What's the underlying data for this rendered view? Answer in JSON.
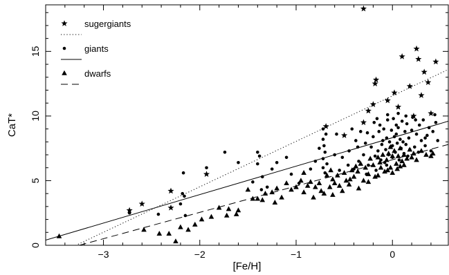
{
  "chart_data": {
    "type": "scatter",
    "xlabel": "[Fe/H]",
    "ylabel": "CaT*",
    "xlim": [
      -3.6,
      0.58
    ],
    "ylim": [
      0,
      18.6
    ],
    "x_ticks": [
      -3,
      -2,
      -1,
      0
    ],
    "y_ticks": [
      0,
      5,
      10,
      15
    ],
    "grid": false,
    "legend_position": "top-left",
    "legend": [
      {
        "label": "sugergiants",
        "marker": "star",
        "line": "dotted"
      },
      {
        "label": "giants",
        "marker": "circle",
        "line": "solid"
      },
      {
        "label": "dwarfs",
        "marker": "triangle",
        "line": "dashed"
      }
    ],
    "fit_lines": [
      {
        "series": "sugergiants",
        "style": "dotted",
        "x": [
          -3.4,
          0.58
        ],
        "y": [
          -0.4,
          13.6
        ]
      },
      {
        "series": "giants",
        "style": "solid",
        "x": [
          -3.6,
          0.58
        ],
        "y": [
          0.4,
          9.6
        ]
      },
      {
        "series": "dwarfs",
        "style": "dashed",
        "x": [
          -3.25,
          0.58
        ],
        "y": [
          0.0,
          7.8
        ]
      }
    ],
    "series": [
      {
        "name": "sugergiants",
        "marker": "star",
        "points": [
          [
            -2.73,
            2.7
          ],
          [
            -2.6,
            3.2
          ],
          [
            -2.3,
            4.2
          ],
          [
            -2.3,
            2.9
          ],
          [
            -1.93,
            5.5
          ],
          [
            -0.69,
            9.2
          ],
          [
            -0.3,
            18.3
          ],
          [
            -0.25,
            10.4
          ],
          [
            -0.18,
            12.5
          ],
          [
            -0.17,
            12.8
          ],
          [
            -0.05,
            11.2
          ],
          [
            0.02,
            11.8
          ],
          [
            0.1,
            14.6
          ],
          [
            0.18,
            12.3
          ],
          [
            0.25,
            15.2
          ],
          [
            0.27,
            14.4
          ],
          [
            0.33,
            13.4
          ],
          [
            0.37,
            12.6
          ],
          [
            0.45,
            14.2
          ],
          [
            0.4,
            10.2
          ],
          [
            -0.5,
            8.5
          ],
          [
            -0.3,
            9.5
          ],
          [
            0.06,
            10.7
          ],
          [
            0.22,
            10.0
          ],
          [
            -0.2,
            10.9
          ],
          [
            0.3,
            11.6
          ]
        ]
      },
      {
        "name": "giants",
        "marker": "circle",
        "points": [
          [
            -2.73,
            2.5
          ],
          [
            -2.43,
            2.4
          ],
          [
            -2.18,
            4.0
          ],
          [
            -2.16,
            3.8
          ],
          [
            -2.17,
            5.6
          ],
          [
            -2.2,
            3.2
          ],
          [
            -2.15,
            2.3
          ],
          [
            -1.93,
            6.0
          ],
          [
            -1.74,
            7.2
          ],
          [
            -1.6,
            6.4
          ],
          [
            -1.45,
            4.9
          ],
          [
            -1.4,
            6.3
          ],
          [
            -1.4,
            7.2
          ],
          [
            -1.38,
            6.9
          ],
          [
            -1.35,
            5.3
          ],
          [
            -1.36,
            4.3
          ],
          [
            -1.3,
            4.5
          ],
          [
            -1.25,
            5.9
          ],
          [
            -1.2,
            6.4
          ],
          [
            -1.1,
            6.8
          ],
          [
            -1.05,
            5.5
          ],
          [
            -0.97,
            4.8
          ],
          [
            -0.85,
            5.9
          ],
          [
            -0.8,
            6.5
          ],
          [
            -0.76,
            7.5
          ],
          [
            -0.72,
            6.7
          ],
          [
            -0.72,
            8.2
          ],
          [
            -0.72,
            9.0
          ],
          [
            -0.72,
            6.0
          ],
          [
            -0.71,
            7.7
          ],
          [
            -0.7,
            5.6
          ],
          [
            -0.69,
            8.6
          ],
          [
            -0.68,
            6.3
          ],
          [
            -0.7,
            7.2
          ],
          [
            -0.6,
            7.0
          ],
          [
            -0.55,
            5.8
          ],
          [
            -0.52,
            6.8
          ],
          [
            -0.45,
            7.3
          ],
          [
            -0.4,
            5.9
          ],
          [
            -0.38,
            8.1
          ],
          [
            -0.35,
            6.5
          ],
          [
            -0.3,
            7.0
          ],
          [
            -0.28,
            7.9
          ],
          [
            -0.27,
            5.5
          ],
          [
            -0.25,
            6.2
          ],
          [
            -0.22,
            7.6
          ],
          [
            -0.2,
            8.4
          ],
          [
            -0.18,
            6.9
          ],
          [
            -0.17,
            5.8
          ],
          [
            -0.15,
            7.3
          ],
          [
            -0.14,
            8.8
          ],
          [
            -0.13,
            9.3
          ],
          [
            -0.12,
            6.6
          ],
          [
            -0.11,
            7.8
          ],
          [
            -0.1,
            8.1
          ],
          [
            -0.09,
            9.0
          ],
          [
            -0.08,
            6.4
          ],
          [
            -0.07,
            7.4
          ],
          [
            -0.06,
            8.3
          ],
          [
            -0.05,
            9.7
          ],
          [
            -0.04,
            7.0
          ],
          [
            -0.03,
            8.0
          ],
          [
            -0.02,
            7.6
          ],
          [
            -0.01,
            8.9
          ],
          [
            0.0,
            6.8
          ],
          [
            0.0,
            7.7
          ],
          [
            0.01,
            9.8
          ],
          [
            0.02,
            8.4
          ],
          [
            0.03,
            7.2
          ],
          [
            0.04,
            8.6
          ],
          [
            0.05,
            7.9
          ],
          [
            0.06,
            9.1
          ],
          [
            0.07,
            6.6
          ],
          [
            0.08,
            8.2
          ],
          [
            0.09,
            7.5
          ],
          [
            0.1,
            9.6
          ],
          [
            0.11,
            8.0
          ],
          [
            0.12,
            7.1
          ],
          [
            0.13,
            8.8
          ],
          [
            0.14,
            7.8
          ],
          [
            0.15,
            9.4
          ],
          [
            0.16,
            6.9
          ],
          [
            0.17,
            8.3
          ],
          [
            0.18,
            7.4
          ],
          [
            0.2,
            8.9
          ],
          [
            0.21,
            9.9
          ],
          [
            0.23,
            7.6
          ],
          [
            0.25,
            8.6
          ],
          [
            0.27,
            7.2
          ],
          [
            0.28,
            9.3
          ],
          [
            0.3,
            8.1
          ],
          [
            0.32,
            9.7
          ],
          [
            0.34,
            7.7
          ],
          [
            0.36,
            8.5
          ],
          [
            0.38,
            9.1
          ],
          [
            0.4,
            7.3
          ],
          [
            0.42,
            8.8
          ],
          [
            0.45,
            9.5
          ],
          [
            0.47,
            8.1
          ],
          [
            -0.19,
            9.5
          ],
          [
            -0.05,
            10.1
          ],
          [
            0.06,
            10.2
          ],
          [
            -0.33,
            8.8
          ],
          [
            -0.42,
            9.0
          ],
          [
            -0.58,
            8.6
          ],
          [
            -0.46,
            6.2
          ],
          [
            -0.36,
            7.6
          ],
          [
            -0.26,
            8.7
          ],
          [
            -0.16,
            9.8
          ],
          [
            -0.06,
            6.2
          ],
          [
            0.04,
            9.3
          ],
          [
            0.14,
            10.0
          ],
          [
            0.24,
            9.7
          ],
          [
            0.34,
            8.3
          ],
          [
            0.44,
            10.1
          ]
        ]
      },
      {
        "name": "dwarfs",
        "marker": "triangle",
        "points": [
          [
            -3.46,
            0.7
          ],
          [
            -2.58,
            1.2
          ],
          [
            -2.32,
            0.9
          ],
          [
            -2.25,
            0.3
          ],
          [
            -2.2,
            1.4
          ],
          [
            -2.05,
            1.6
          ],
          [
            -1.98,
            2.0
          ],
          [
            -1.88,
            2.2
          ],
          [
            -1.8,
            2.9
          ],
          [
            -1.7,
            2.8
          ],
          [
            -1.6,
            2.7
          ],
          [
            -1.5,
            4.3
          ],
          [
            -1.45,
            3.6
          ],
          [
            -1.4,
            3.6
          ],
          [
            -1.35,
            3.5
          ],
          [
            -1.32,
            4.0
          ],
          [
            -1.25,
            4.1
          ],
          [
            -1.2,
            4.4
          ],
          [
            -1.15,
            3.7
          ],
          [
            -1.1,
            4.8
          ],
          [
            -1.05,
            4.3
          ],
          [
            -1.0,
            4.5
          ],
          [
            -0.95,
            5.0
          ],
          [
            -0.92,
            4.1
          ],
          [
            -0.88,
            4.6
          ],
          [
            -0.85,
            4.9
          ],
          [
            -0.8,
            4.5
          ],
          [
            -0.76,
            4.8
          ],
          [
            -0.74,
            4.2
          ],
          [
            -0.71,
            4.0
          ],
          [
            -0.68,
            5.4
          ],
          [
            -0.65,
            4.5
          ],
          [
            -0.62,
            5.1
          ],
          [
            -0.6,
            4.8
          ],
          [
            -0.57,
            5.4
          ],
          [
            -0.55,
            4.6
          ],
          [
            -0.5,
            5.6
          ],
          [
            -0.48,
            5.0
          ],
          [
            -0.45,
            4.7
          ],
          [
            -0.42,
            5.8
          ],
          [
            -0.4,
            5.3
          ],
          [
            -0.38,
            6.1
          ],
          [
            -0.36,
            5.7
          ],
          [
            -0.33,
            6.3
          ],
          [
            -0.3,
            5.0
          ],
          [
            -0.28,
            6.0
          ],
          [
            -0.25,
            5.5
          ],
          [
            -0.23,
            6.7
          ],
          [
            -0.2,
            6.2
          ],
          [
            -0.18,
            5.3
          ],
          [
            -0.15,
            6.8
          ],
          [
            -0.13,
            6.4
          ],
          [
            -0.1,
            7.0
          ],
          [
            -0.08,
            5.7
          ],
          [
            -0.06,
            6.6
          ],
          [
            -0.04,
            7.1
          ],
          [
            -0.02,
            6.0
          ],
          [
            0.0,
            6.9
          ],
          [
            0.0,
            5.6
          ],
          [
            0.02,
            7.3
          ],
          [
            0.04,
            6.3
          ],
          [
            0.06,
            6.9
          ],
          [
            0.08,
            7.5
          ],
          [
            0.1,
            6.5
          ],
          [
            0.12,
            7.0
          ],
          [
            0.15,
            6.7
          ],
          [
            0.18,
            7.4
          ],
          [
            0.2,
            6.8
          ],
          [
            0.22,
            7.1
          ],
          [
            0.25,
            6.6
          ],
          [
            0.3,
            7.3
          ],
          [
            0.35,
            7.0
          ],
          [
            0.4,
            6.9
          ],
          [
            0.42,
            7.1
          ],
          [
            -0.35,
            4.4
          ],
          [
            -0.25,
            4.9
          ],
          [
            -0.15,
            5.4
          ],
          [
            -0.05,
            5.8
          ],
          [
            0.05,
            5.9
          ],
          [
            0.12,
            6.2
          ],
          [
            -0.62,
            3.9
          ],
          [
            -0.52,
            4.2
          ],
          [
            -0.82,
            3.7
          ],
          [
            -1.22,
            3.3
          ],
          [
            -1.62,
            2.4
          ],
          [
            -1.72,
            2.3
          ],
          [
            -2.12,
            1.2
          ],
          [
            -2.42,
            0.9
          ],
          [
            -0.12,
            6.0
          ],
          [
            -0.02,
            7.6
          ],
          [
            0.08,
            6.1
          ],
          [
            -0.44,
            5.1
          ],
          [
            -0.64,
            5.8
          ],
          [
            -0.92,
            5.6
          ]
        ]
      }
    ]
  }
}
